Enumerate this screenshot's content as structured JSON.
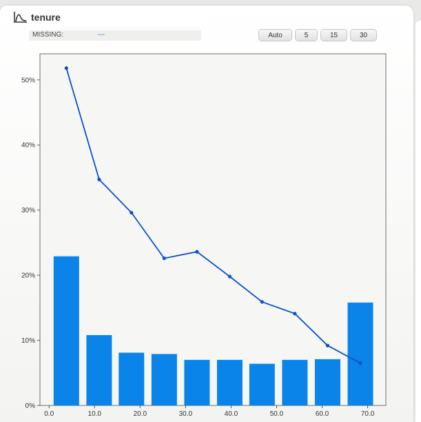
{
  "header": {
    "title": "tenure",
    "icon": "distribution-curve-icon"
  },
  "missing": {
    "label": "MISSING:",
    "value": "---"
  },
  "bin_buttons": [
    "Auto",
    "5",
    "15",
    "30"
  ],
  "colors": {
    "bar": "#0a84e8",
    "line": "#0b4fcf",
    "plot_background": "#f6f6f4"
  },
  "chart_data": {
    "type": "bar",
    "title": "tenure",
    "xlabel": "",
    "ylabel": "",
    "x_ticks": [
      "0.0",
      "10.0",
      "20.0",
      "30.0",
      "40.0",
      "50.0",
      "60.0",
      "70.0"
    ],
    "xlim": [
      -2,
      74
    ],
    "y_ticks": [
      "0%",
      "10%",
      "20%",
      "30%",
      "40%",
      "50%"
    ],
    "ylim": [
      0,
      0.54
    ],
    "grid": false,
    "legend": "none",
    "bins": [
      {
        "start": 1.0,
        "end": 6.6
      },
      {
        "start": 8.2,
        "end": 13.8
      },
      {
        "start": 15.3,
        "end": 20.9
      },
      {
        "start": 22.5,
        "end": 28.1
      },
      {
        "start": 29.7,
        "end": 35.3
      },
      {
        "start": 36.9,
        "end": 42.5
      },
      {
        "start": 44.0,
        "end": 49.6
      },
      {
        "start": 51.2,
        "end": 56.8
      },
      {
        "start": 58.4,
        "end": 64.0
      },
      {
        "start": 65.6,
        "end": 71.2
      }
    ],
    "series": [
      {
        "type": "bar",
        "values": [
          0.229,
          0.108,
          0.081,
          0.079,
          0.07,
          0.07,
          0.064,
          0.07,
          0.071,
          0.158
        ]
      },
      {
        "type": "line",
        "x": [
          3.8,
          11.0,
          18.1,
          25.3,
          32.5,
          39.7,
          46.8,
          54.0,
          61.2,
          68.4
        ],
        "values": [
          0.518,
          0.347,
          0.296,
          0.226,
          0.236,
          0.198,
          0.159,
          0.141,
          0.092,
          0.065
        ]
      }
    ]
  }
}
